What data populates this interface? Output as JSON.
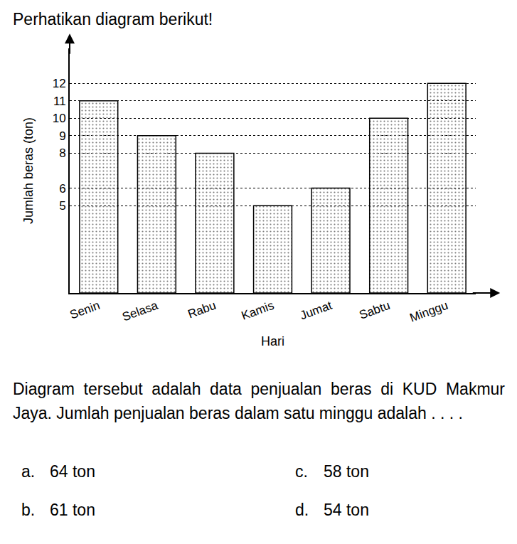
{
  "heading": "Perhatikan diagram berikut!",
  "chart_data": {
    "type": "bar",
    "categories": [
      "Senin",
      "Selasa",
      "Rabu",
      "Kamis",
      "Jumat",
      "Sabtu",
      "Minggu"
    ],
    "values": [
      11,
      9,
      8,
      5,
      6,
      10,
      12
    ],
    "color": "#a8a8a8",
    "x_label": "Hari",
    "y_label": "Jumlah beras (ton)",
    "ylim": [
      0,
      14
    ],
    "yticks": [
      5,
      6,
      8,
      9,
      10,
      11,
      12
    ],
    "grid": true
  },
  "question": "Diagram tersebut adalah data penjualan beras di KUD Makmur Jaya. Jumlah penjualan beras dalam satu minggu adalah . . . .",
  "options": [
    {
      "label": "a.",
      "text": "64 ton"
    },
    {
      "label": "b.",
      "text": "61 ton"
    },
    {
      "label": "c.",
      "text": "58 ton"
    },
    {
      "label": "d.",
      "text": "54 ton"
    }
  ]
}
